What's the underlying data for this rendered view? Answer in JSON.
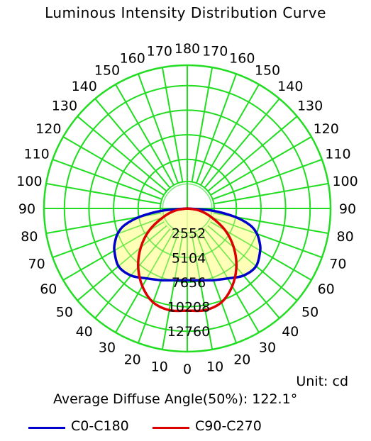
{
  "chart_data": {
    "type": "polar",
    "title": "Luminous Intensity Distribution Curve",
    "unit_label": "Unit: cd",
    "diffuse_angle_label": "Average Diffuse Angle(50%): 122.1°",
    "radial_ticks": [
      2552,
      5104,
      7656,
      10208,
      12760
    ],
    "radial_max": 12760,
    "angle_labels_left": [
      "0",
      "10",
      "20",
      "30",
      "40",
      "50",
      "60",
      "70",
      "80",
      "90",
      "100",
      "110",
      "120",
      "130",
      "140",
      "150",
      "160",
      "180"
    ],
    "angle_labels_right": [
      "10",
      "20",
      "30",
      "40",
      "50",
      "60",
      "70",
      "80",
      "90",
      "100",
      "110",
      "120",
      "130",
      "140",
      "150",
      "160",
      "170"
    ],
    "angle_label_170_left": "170",
    "colors": {
      "grid": "#22dd22",
      "fill": "#ffffaa",
      "c0": "#0000cc",
      "c90": "#dd0000"
    },
    "series": [
      {
        "name": "C0-C180",
        "angles": [
          0,
          10,
          20,
          30,
          40,
          50,
          60,
          65,
          70,
          75,
          80,
          85,
          90
        ],
        "values": [
          6400,
          6500,
          6800,
          7200,
          7800,
          8000,
          7500,
          7100,
          6600,
          5800,
          4300,
          2200,
          0
        ]
      },
      {
        "name": "C90-C270",
        "angles": [
          0,
          10,
          20,
          30,
          40,
          50,
          60,
          70,
          80,
          90
        ],
        "values": [
          9100,
          9200,
          8900,
          8000,
          6800,
          5400,
          3900,
          2300,
          1100,
          0
        ]
      }
    ]
  }
}
